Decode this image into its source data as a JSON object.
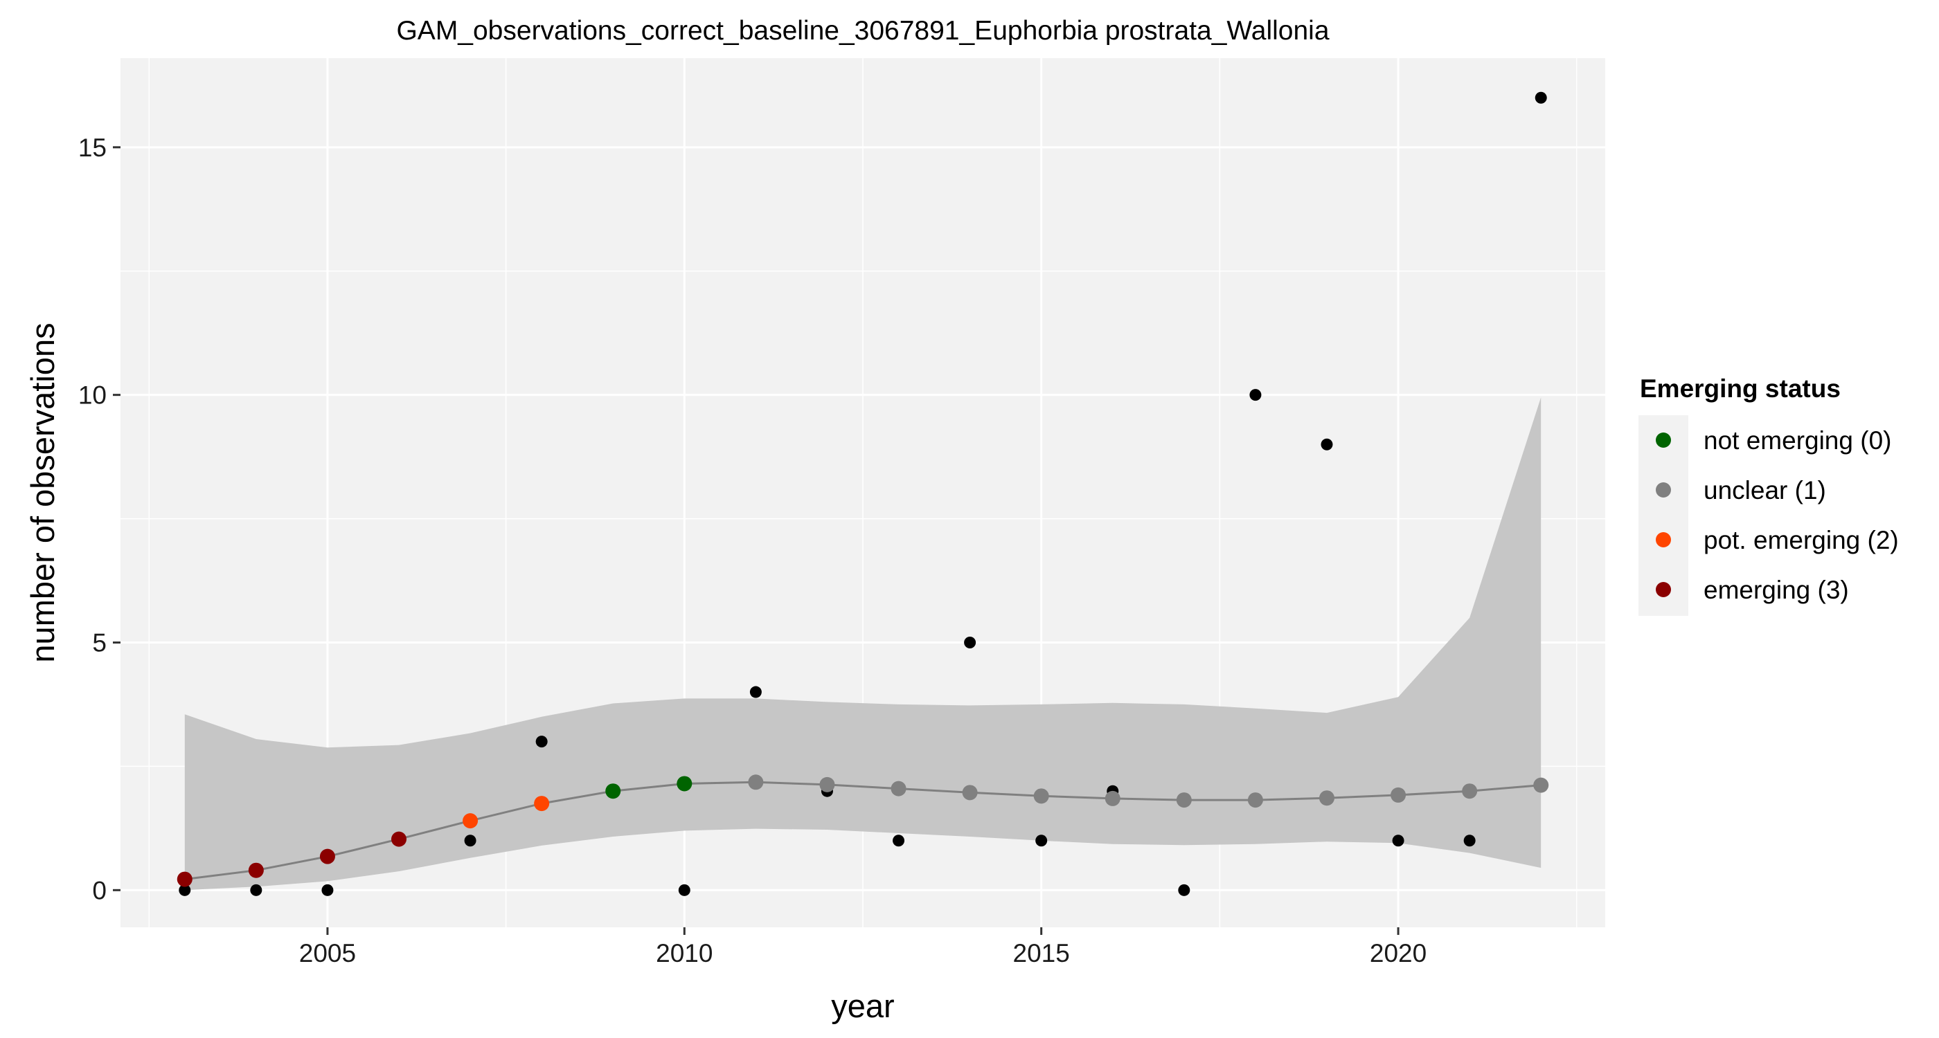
{
  "chart_data": {
    "type": "scatter",
    "title": "GAM_observations_correct_baseline_3067891_Euphorbia prostrata_Wallonia",
    "xlabel": "year",
    "ylabel": "number of observations",
    "xlim": [
      2002.1,
      2022.9
    ],
    "ylim": [
      -0.75,
      16.8
    ],
    "x_ticks": [
      2005,
      2010,
      2015,
      2020
    ],
    "y_ticks": [
      0,
      5,
      10,
      15
    ],
    "grid": true,
    "legend_placement": "right",
    "observations": {
      "x": [
        2003,
        2004,
        2005,
        2006,
        2007,
        2008,
        2009,
        2010,
        2011,
        2012,
        2013,
        2014,
        2015,
        2016,
        2017,
        2018,
        2019,
        2020,
        2021,
        2022
      ],
      "y": [
        0,
        0,
        0,
        1,
        1,
        3,
        2,
        0,
        4,
        2,
        1,
        5,
        1,
        2,
        0,
        10,
        9,
        1,
        1,
        16
      ]
    },
    "fit": {
      "x": [
        2003,
        2004,
        2005,
        2006,
        2007,
        2008,
        2009,
        2010,
        2011,
        2012,
        2013,
        2014,
        2015,
        2016,
        2017,
        2018,
        2019,
        2020,
        2021,
        2022
      ],
      "y": [
        0.22,
        0.4,
        0.68,
        1.03,
        1.4,
        1.75,
        2.0,
        2.15,
        2.18,
        2.13,
        2.05,
        1.97,
        1.9,
        1.85,
        1.82,
        1.82,
        1.86,
        1.92,
        2.0,
        2.12
      ],
      "lower": [
        0.0,
        0.07,
        0.18,
        0.38,
        0.65,
        0.9,
        1.08,
        1.2,
        1.24,
        1.22,
        1.15,
        1.08,
        1.0,
        0.93,
        0.91,
        0.93,
        0.98,
        0.95,
        0.75,
        0.45
      ],
      "upper": [
        3.55,
        3.05,
        2.88,
        2.93,
        3.17,
        3.5,
        3.77,
        3.87,
        3.87,
        3.8,
        3.75,
        3.73,
        3.75,
        3.78,
        3.75,
        3.67,
        3.58,
        3.9,
        5.5,
        9.95
      ],
      "status": [
        3,
        3,
        3,
        3,
        2,
        2,
        0,
        0,
        1,
        1,
        1,
        1,
        1,
        1,
        1,
        1,
        1,
        1,
        1,
        1
      ]
    },
    "legend": {
      "title": "Emerging status",
      "items": [
        {
          "label": "not emerging (0)",
          "color": "#006400"
        },
        {
          "label": "unclear (1)",
          "color": "#808080"
        },
        {
          "label": "pot. emerging (2)",
          "color": "#FF4500"
        },
        {
          "label": "emerging (3)",
          "color": "#8B0000"
        }
      ]
    },
    "colors": {
      "panel": "#F2F2F2",
      "grid": "#FFFFFF",
      "ribbon": "#C6C6C6",
      "fit_line": "#808080",
      "observation_point": "#000000"
    }
  }
}
